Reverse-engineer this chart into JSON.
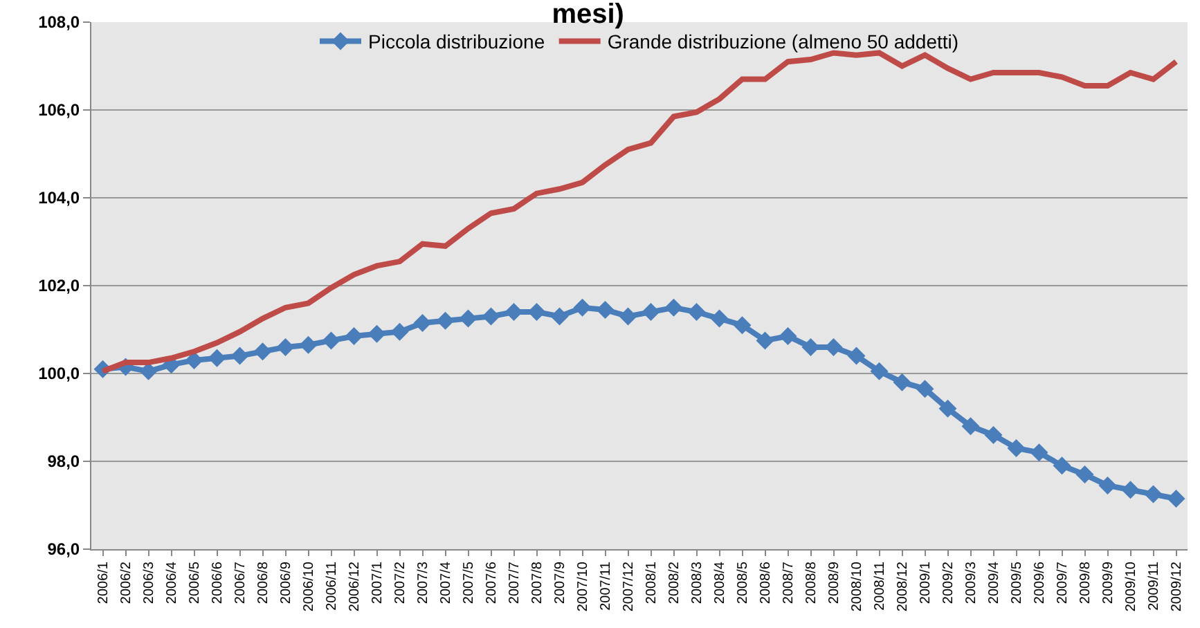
{
  "chart_data": {
    "type": "line",
    "title": "mesi)",
    "categories": [
      "2006/1",
      "2006/2",
      "2006/3",
      "2006/4",
      "2006/5",
      "2006/6",
      "2006/7",
      "2006/8",
      "2006/9",
      "2006/10",
      "2006/11",
      "2006/12",
      "2007/1",
      "2007/2",
      "2007/3",
      "2007/4",
      "2007/5",
      "2007/6",
      "2007/7",
      "2007/8",
      "2007/9",
      "2007/10",
      "2007/11",
      "2007/12",
      "2008/1",
      "2008/2",
      "2008/3",
      "2008/4",
      "2008/5",
      "2008/6",
      "2008/7",
      "2008/8",
      "2008/9",
      "2008/10",
      "2008/11",
      "2008/12",
      "2009/1",
      "2009/2",
      "2009/3",
      "2009/4",
      "2009/5",
      "2009/6",
      "2009/7",
      "2009/8",
      "2009/9",
      "2009/10",
      "2009/11",
      "2009/12"
    ],
    "series": [
      {
        "name": "Piccola distribuzione",
        "color": "#4a7ebb",
        "marker": "diamond",
        "values": [
          100.1,
          100.15,
          100.05,
          100.2,
          100.3,
          100.35,
          100.4,
          100.5,
          100.6,
          100.65,
          100.75,
          100.85,
          100.9,
          100.95,
          101.15,
          101.2,
          101.25,
          101.3,
          101.4,
          101.4,
          101.3,
          101.5,
          101.45,
          101.3,
          101.4,
          101.5,
          101.4,
          101.25,
          101.1,
          100.75,
          100.85,
          100.6,
          100.6,
          100.4,
          100.05,
          99.8,
          99.65,
          99.2,
          98.8,
          98.6,
          98.3,
          98.2,
          97.9,
          97.7,
          97.45,
          97.35,
          97.25,
          97.15
        ]
      },
      {
        "name": "Grande distribuzione (almeno 50 addetti)",
        "color": "#be4b48",
        "marker": "none",
        "values": [
          100.05,
          100.25,
          100.25,
          100.35,
          100.5,
          100.7,
          100.95,
          101.25,
          101.5,
          101.6,
          101.95,
          102.25,
          102.45,
          102.55,
          102.95,
          102.9,
          103.3,
          103.65,
          103.75,
          104.1,
          104.2,
          104.35,
          104.75,
          105.1,
          105.25,
          105.85,
          105.95,
          106.25,
          106.7,
          106.7,
          107.1,
          107.15,
          107.3,
          107.25,
          107.3,
          107.0,
          107.25,
          106.95,
          106.7,
          106.85,
          106.85,
          106.85,
          106.75,
          106.55,
          106.55,
          106.85,
          106.7,
          107.1
        ]
      }
    ],
    "ylim": [
      96,
      108
    ],
    "yticks": [
      {
        "value": 96,
        "label": "96,0"
      },
      {
        "value": 98,
        "label": "98,0"
      },
      {
        "value": 100,
        "label": "100,0"
      },
      {
        "value": 102,
        "label": "102,0"
      },
      {
        "value": 104,
        "label": "104,0"
      },
      {
        "value": 106,
        "label": "106,0"
      },
      {
        "value": 108,
        "label": "108,0"
      }
    ],
    "grid": "y",
    "legend": "top",
    "line_style": "solid"
  }
}
